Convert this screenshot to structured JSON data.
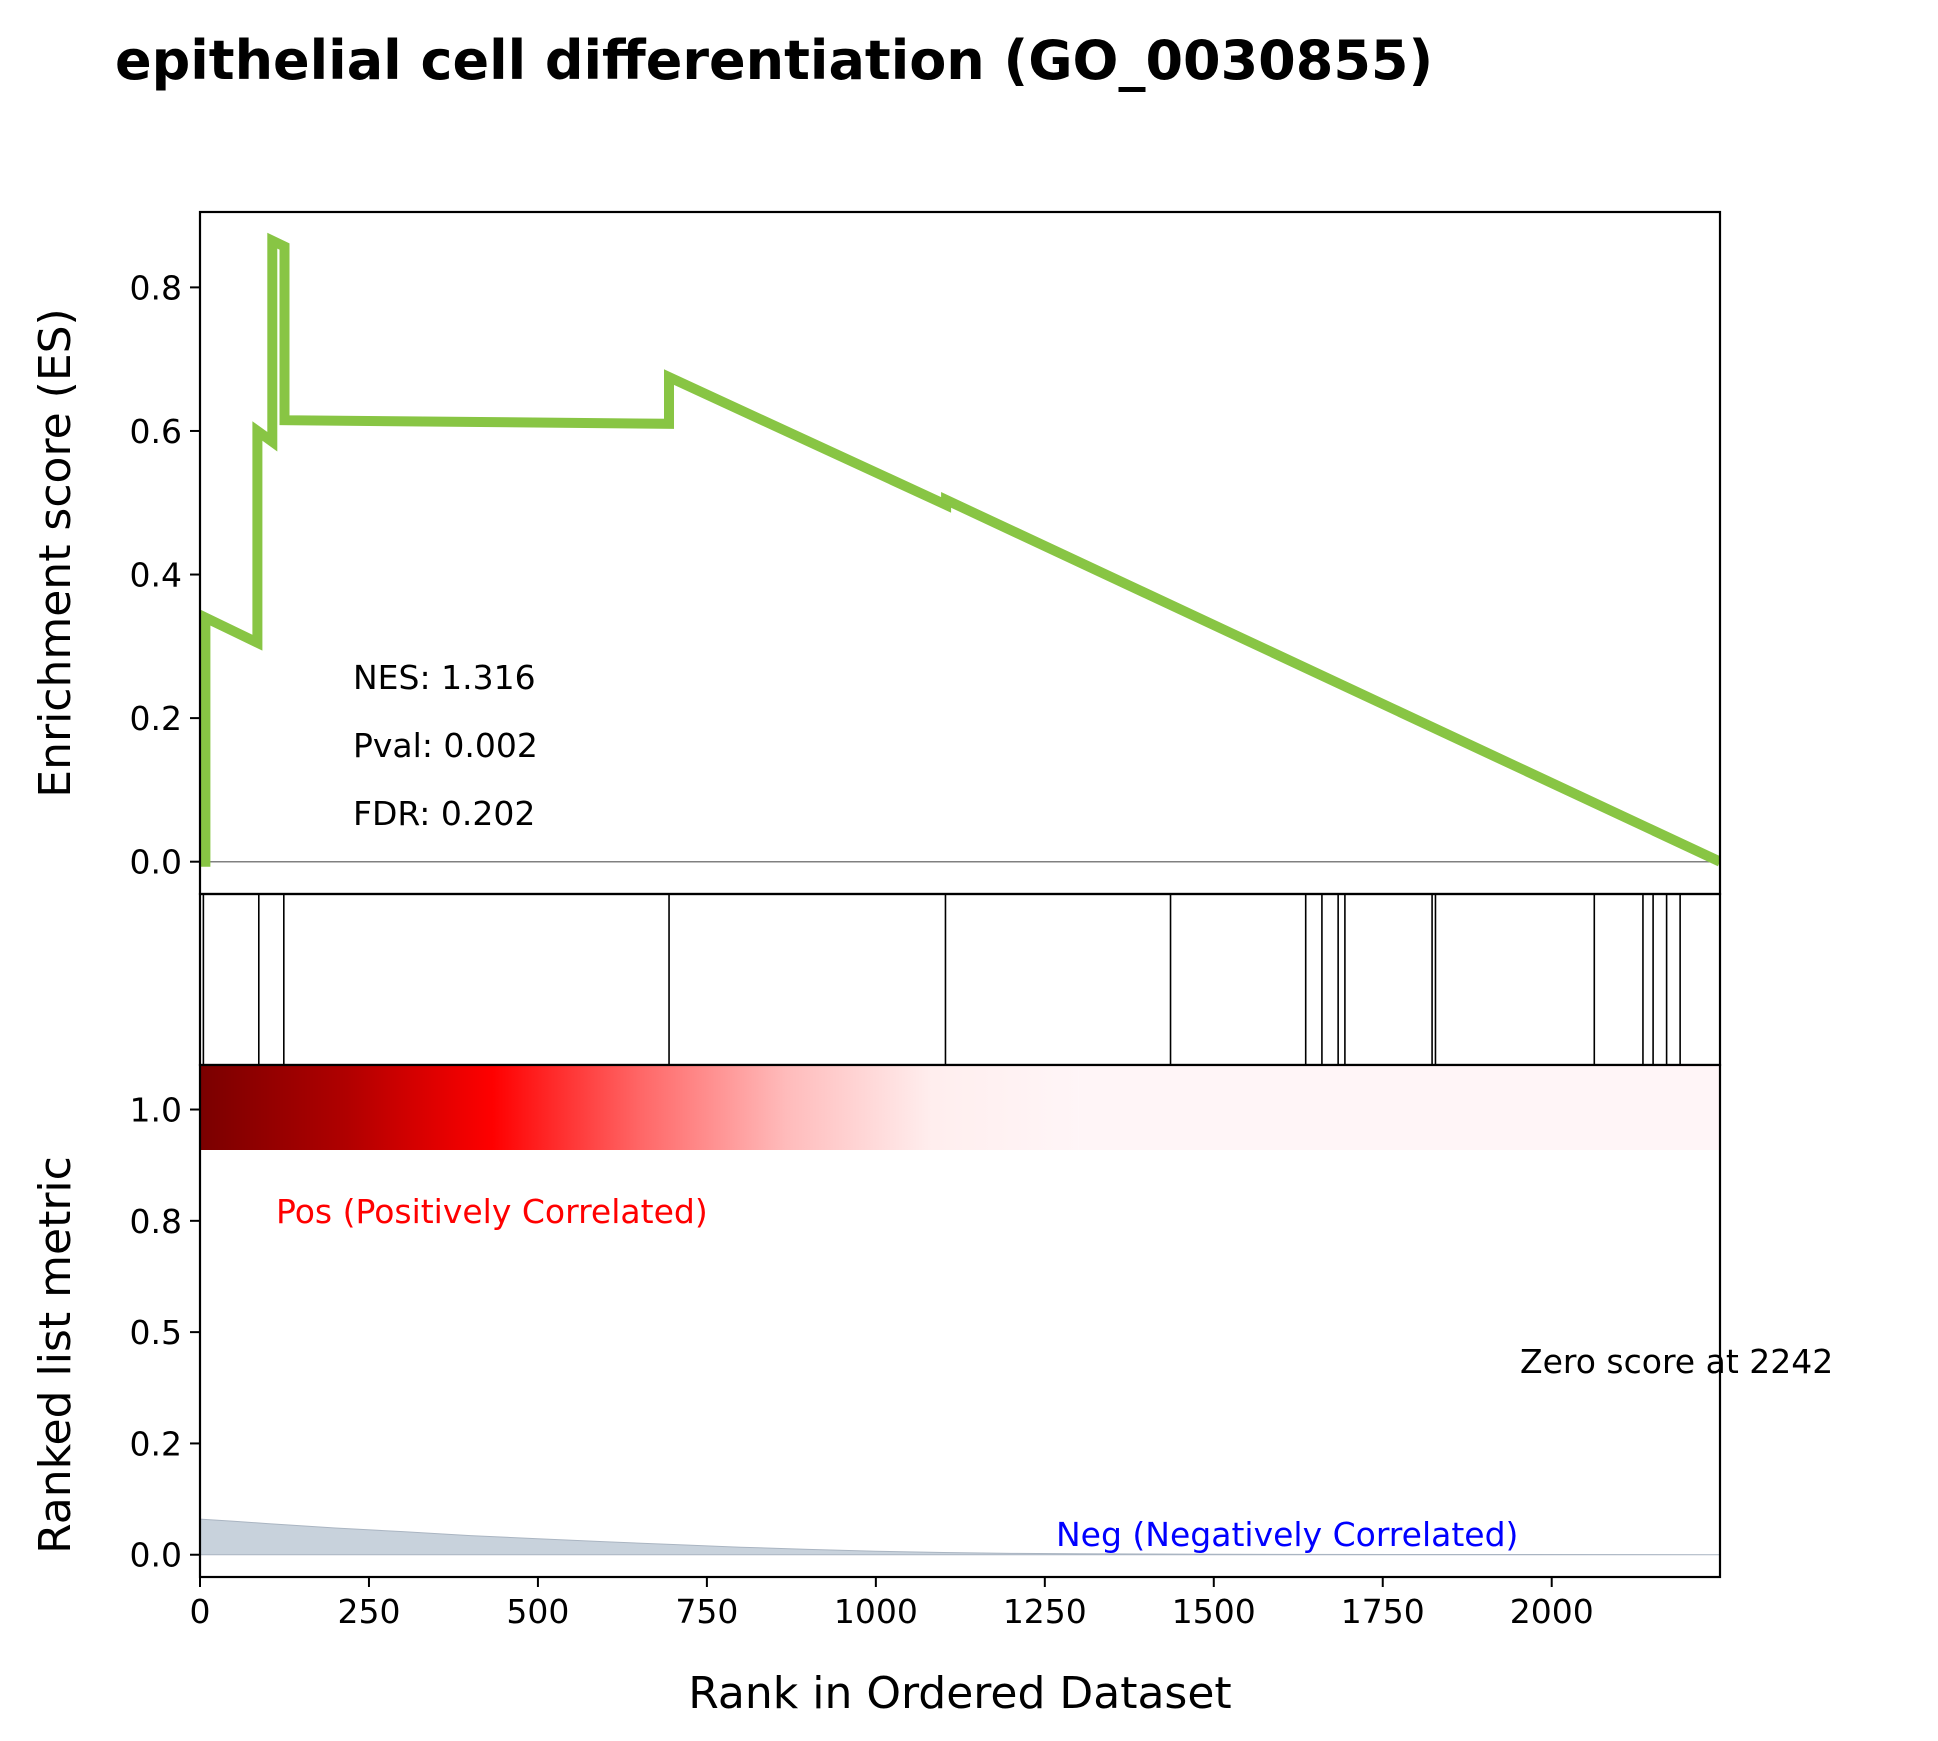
{
  "chart_data": {
    "type": "line",
    "title": "epithelial cell differentiation (GO_0030855)",
    "stats": [
      "NES: 1.316",
      "Pval: 0.002",
      "FDR: 0.202"
    ],
    "xlabel": "Rank in Ordered Dataset",
    "xlim": [
      0,
      2249
    ],
    "x_ticks": [
      0,
      250,
      500,
      750,
      1000,
      1250,
      1500,
      1750,
      2000
    ],
    "x_tick_labels": [
      "0",
      "250",
      "500",
      "750",
      "1000",
      "1250",
      "1500",
      "1750",
      "2000"
    ],
    "es_panel": {
      "ylabel": "Enrichment score (ES)",
      "ylim": [
        -0.045,
        0.905
      ],
      "y_ticks": [
        0.0,
        0.2,
        0.4,
        0.6,
        0.8
      ],
      "y_tick_labels": [
        "0.0",
        "0.2",
        "0.4",
        "0.6",
        "0.8"
      ],
      "color": "#88c544",
      "series": [
        {
          "x": [
            0,
            8,
            8,
            85,
            85,
            107,
            107,
            125,
            125,
            694,
            694,
            1104,
            1104,
            2249
          ],
          "y": [
            0.0,
            0.0,
            0.34,
            0.305,
            0.6,
            0.585,
            0.865,
            0.857,
            0.615,
            0.61,
            0.675,
            0.497,
            0.504,
            0.0
          ]
        }
      ]
    },
    "hits_panel": {
      "positions": [
        5,
        87,
        124,
        694,
        1103,
        1436,
        1636,
        1660,
        1684,
        1694,
        1823,
        1828,
        2063,
        2135,
        2150,
        2170,
        2190
      ]
    },
    "colorbar": {
      "x_end": 1300,
      "stops": [
        "#7a0000",
        "#b00000",
        "#ff0000",
        "#ff6666",
        "#ffbbbb",
        "#ffeeee",
        "#fff5f7"
      ]
    },
    "metric_panel": {
      "ylabel": "Ranked list metric",
      "ylim": [
        -0.05,
        1.1
      ],
      "y_ticks": [
        0.0,
        0.25,
        0.5,
        0.75,
        1.0
      ],
      "y_tick_labels": [
        "0.0",
        "0.2",
        "0.5",
        "0.8",
        "1.0"
      ],
      "fill_color": "#c8d2dc",
      "series": [
        {
          "x": [
            0,
            50,
            100,
            200,
            300,
            400,
            500,
            600,
            700,
            800,
            900,
            1000,
            1100,
            1200,
            1300,
            1500,
            2249
          ],
          "y": [
            0.08,
            0.075,
            0.07,
            0.06,
            0.052,
            0.043,
            0.036,
            0.029,
            0.023,
            0.017,
            0.012,
            0.008,
            0.005,
            0.003,
            0.002,
            0.001,
            0.0
          ]
        }
      ],
      "pos_label": "Pos (Positively Correlated)",
      "neg_label": "Neg (Negatively Correlated)",
      "zero_label": "Zero score at 2242",
      "pos_color": "#ff0000",
      "neg_color": "#0000ff"
    }
  }
}
